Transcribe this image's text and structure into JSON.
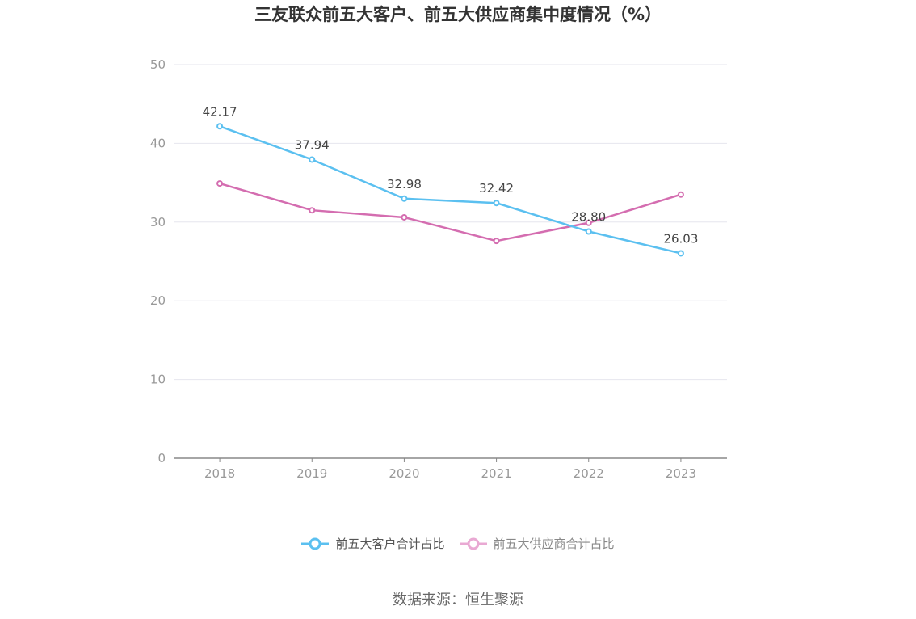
{
  "title": "三友联众前五大客户、前五大供应商集中度情况（%）",
  "source": "数据来源：恒生聚源",
  "chart_data": {
    "type": "line",
    "categories": [
      "2018",
      "2019",
      "2020",
      "2021",
      "2022",
      "2023"
    ],
    "series": [
      {
        "name": "前五大客户合计占比",
        "values": [
          42.17,
          37.94,
          32.98,
          32.42,
          28.8,
          26.03
        ],
        "color": "#5bc0f0",
        "labels": true
      },
      {
        "name": "前五大供应商合计占比",
        "values": [
          34.9,
          31.5,
          30.6,
          27.6,
          29.9,
          33.5
        ],
        "color": "#d46db0",
        "labels": false
      }
    ],
    "ylim": [
      0,
      50
    ],
    "yticks": [
      0,
      10,
      20,
      30,
      40,
      50
    ],
    "grid": true,
    "legend": "bottom"
  }
}
